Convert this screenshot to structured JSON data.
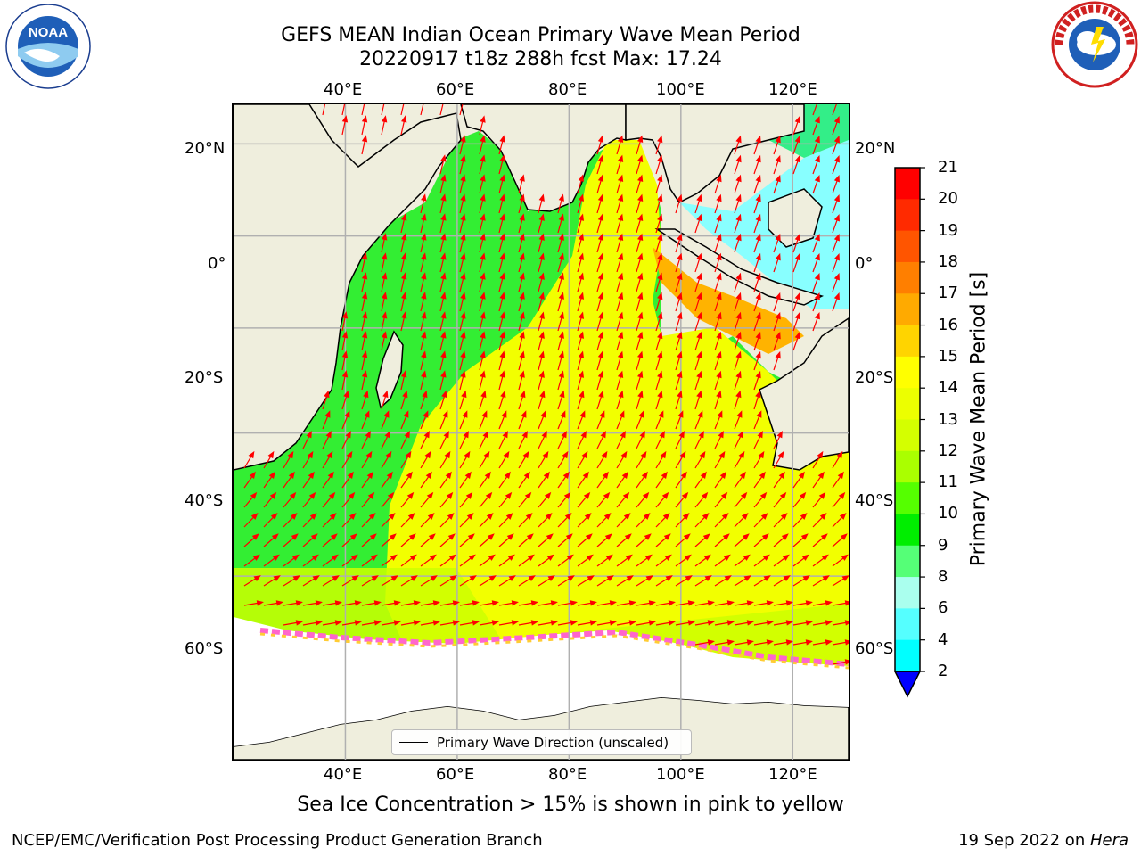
{
  "title": {
    "line1": "GEFS MEAN Indian Ocean Primary Wave Mean Period",
    "line2": "20220917 t18z 288h fcst   Max: 17.24"
  },
  "logos": {
    "left": {
      "name": "noaa-logo",
      "text": "NOAA"
    },
    "right": {
      "name": "nws-logo",
      "text": "NATIONAL WEATHER SERVICE"
    }
  },
  "map": {
    "lon_range": [
      20,
      130
    ],
    "lat_range": [
      -75,
      28
    ],
    "lon_ticks": [
      "40°E",
      "60°E",
      "80°E",
      "100°E",
      "120°E"
    ],
    "lat_ticks": [
      "20°N",
      "0°",
      "20°S",
      "40°S",
      "60°S"
    ],
    "grid": true,
    "land_color": "#efeedd",
    "ice_edge_color": "#ff66cc",
    "arrow_color": "#ff0000",
    "legend_label": "Primary Wave Direction (unscaled)"
  },
  "colorbar": {
    "label": "Primary Wave Mean Period [s]",
    "tick_labels": [
      "21",
      "20",
      "19",
      "18",
      "17",
      "16",
      "15",
      "14",
      "13",
      "12",
      "11",
      "10",
      "9",
      "8",
      "6",
      "4",
      "2"
    ],
    "colors_top_to_bottom": [
      "#ff0000",
      "#ff2a00",
      "#ff5500",
      "#ff7f00",
      "#ffaa00",
      "#ffd400",
      "#ffff00",
      "#ecff00",
      "#d4ff00",
      "#aaff00",
      "#55ff00",
      "#00ee00",
      "#55ff77",
      "#aaffee",
      "#55ffff",
      "#00ffff",
      "#00ccff",
      "#0066ff"
    ],
    "extend": "min",
    "extend_color": "#0000ff"
  },
  "footnote": "Sea Ice Concentration > 15% is shown in pink to yellow",
  "credit_left": "NCEP/EMC/Verification Post Processing Product Generation Branch",
  "credit_right_prefix": "19 Sep 2022 on ",
  "credit_right_host": "Hera"
}
